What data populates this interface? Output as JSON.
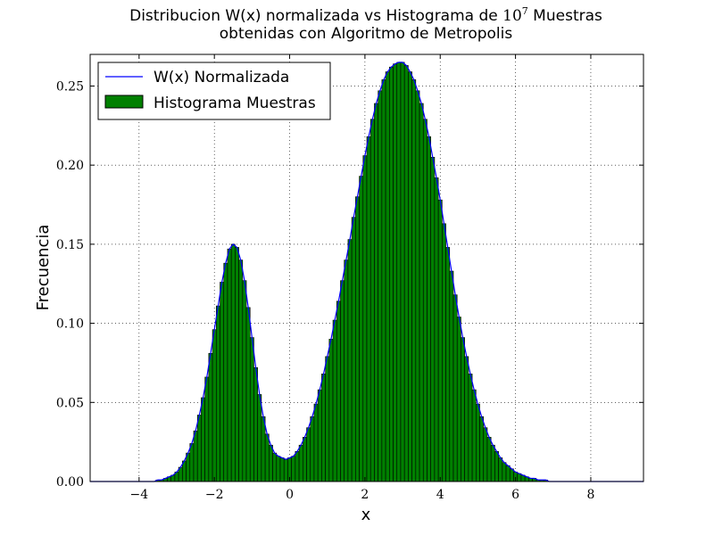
{
  "chart_data": {
    "type": "bar",
    "title_line1_prefix": "Distribucion W(x) normalizada vs Histograma de ",
    "title_pow_base": "10",
    "title_pow_exp": "7",
    "title_line1_suffix": " Muestras",
    "title_line2": "obtenidas con Algoritmo de Metropolis",
    "xlabel": "x",
    "ylabel": "Frecuencia",
    "xlim": [
      -5.3,
      9.4
    ],
    "ylim": [
      0,
      0.27
    ],
    "xticks": [
      -4,
      -2,
      0,
      2,
      4,
      6,
      8
    ],
    "xtick_labels": [
      "−4",
      "−2",
      "0",
      "2",
      "4",
      "6",
      "8"
    ],
    "yticks": [
      0,
      0.05,
      0.1,
      0.15,
      0.2,
      0.25
    ],
    "ytick_labels": [
      "0.00",
      "0.05",
      "0.10",
      "0.15",
      "0.20",
      "0.25"
    ],
    "grid": true,
    "legend_position": "top-left",
    "series": [
      {
        "name": "W(x) Normalizada",
        "kind": "line",
        "color": "#0000ff"
      },
      {
        "name": "Histograma Muestras",
        "kind": "histogram",
        "color": "#008000"
      }
    ],
    "bin_width": 0.1,
    "bins": [
      [
        -3.5,
        0.001
      ],
      [
        -3.4,
        0.001
      ],
      [
        -3.3,
        0.002
      ],
      [
        -3.2,
        0.003
      ],
      [
        -3.1,
        0.004
      ],
      [
        -3.0,
        0.006
      ],
      [
        -2.9,
        0.009
      ],
      [
        -2.8,
        0.013
      ],
      [
        -2.7,
        0.018
      ],
      [
        -2.6,
        0.024
      ],
      [
        -2.5,
        0.032
      ],
      [
        -2.4,
        0.042
      ],
      [
        -2.3,
        0.053
      ],
      [
        -2.2,
        0.066
      ],
      [
        -2.1,
        0.081
      ],
      [
        -2.0,
        0.096
      ],
      [
        -1.9,
        0.111
      ],
      [
        -1.8,
        0.126
      ],
      [
        -1.7,
        0.138
      ],
      [
        -1.6,
        0.147
      ],
      [
        -1.5,
        0.15
      ],
      [
        -1.4,
        0.148
      ],
      [
        -1.3,
        0.14
      ],
      [
        -1.2,
        0.127
      ],
      [
        -1.1,
        0.11
      ],
      [
        -1.0,
        0.091
      ],
      [
        -0.9,
        0.072
      ],
      [
        -0.8,
        0.055
      ],
      [
        -0.7,
        0.041
      ],
      [
        -0.6,
        0.03
      ],
      [
        -0.5,
        0.023
      ],
      [
        -0.4,
        0.018
      ],
      [
        -0.3,
        0.016
      ],
      [
        -0.2,
        0.015
      ],
      [
        -0.1,
        0.014
      ],
      [
        0.0,
        0.015
      ],
      [
        0.1,
        0.016
      ],
      [
        0.2,
        0.019
      ],
      [
        0.3,
        0.023
      ],
      [
        0.4,
        0.028
      ],
      [
        0.5,
        0.034
      ],
      [
        0.6,
        0.041
      ],
      [
        0.7,
        0.049
      ],
      [
        0.8,
        0.058
      ],
      [
        0.9,
        0.068
      ],
      [
        1.0,
        0.079
      ],
      [
        1.1,
        0.09
      ],
      [
        1.2,
        0.102
      ],
      [
        1.3,
        0.114
      ],
      [
        1.4,
        0.127
      ],
      [
        1.5,
        0.14
      ],
      [
        1.6,
        0.153
      ],
      [
        1.7,
        0.167
      ],
      [
        1.8,
        0.18
      ],
      [
        1.9,
        0.193
      ],
      [
        2.0,
        0.206
      ],
      [
        2.1,
        0.218
      ],
      [
        2.2,
        0.229
      ],
      [
        2.3,
        0.239
      ],
      [
        2.4,
        0.247
      ],
      [
        2.5,
        0.254
      ],
      [
        2.6,
        0.259
      ],
      [
        2.7,
        0.262
      ],
      [
        2.8,
        0.264
      ],
      [
        2.9,
        0.265
      ],
      [
        3.0,
        0.265
      ],
      [
        3.1,
        0.263
      ],
      [
        3.2,
        0.259
      ],
      [
        3.3,
        0.254
      ],
      [
        3.4,
        0.247
      ],
      [
        3.5,
        0.239
      ],
      [
        3.6,
        0.229
      ],
      [
        3.7,
        0.218
      ],
      [
        3.8,
        0.205
      ],
      [
        3.9,
        0.192
      ],
      [
        4.0,
        0.178
      ],
      [
        4.1,
        0.163
      ],
      [
        4.2,
        0.148
      ],
      [
        4.3,
        0.133
      ],
      [
        4.4,
        0.118
      ],
      [
        4.5,
        0.104
      ],
      [
        4.6,
        0.091
      ],
      [
        4.7,
        0.079
      ],
      [
        4.8,
        0.068
      ],
      [
        4.9,
        0.058
      ],
      [
        5.0,
        0.049
      ],
      [
        5.1,
        0.041
      ],
      [
        5.2,
        0.034
      ],
      [
        5.3,
        0.028
      ],
      [
        5.4,
        0.023
      ],
      [
        5.5,
        0.019
      ],
      [
        5.6,
        0.015
      ],
      [
        5.7,
        0.012
      ],
      [
        5.8,
        0.01
      ],
      [
        5.9,
        0.008
      ],
      [
        6.0,
        0.006
      ],
      [
        6.1,
        0.005
      ],
      [
        6.2,
        0.004
      ],
      [
        6.3,
        0.003
      ],
      [
        6.4,
        0.002
      ],
      [
        6.5,
        0.002
      ],
      [
        6.6,
        0.001
      ],
      [
        6.7,
        0.001
      ],
      [
        6.8,
        0.001
      ]
    ]
  }
}
